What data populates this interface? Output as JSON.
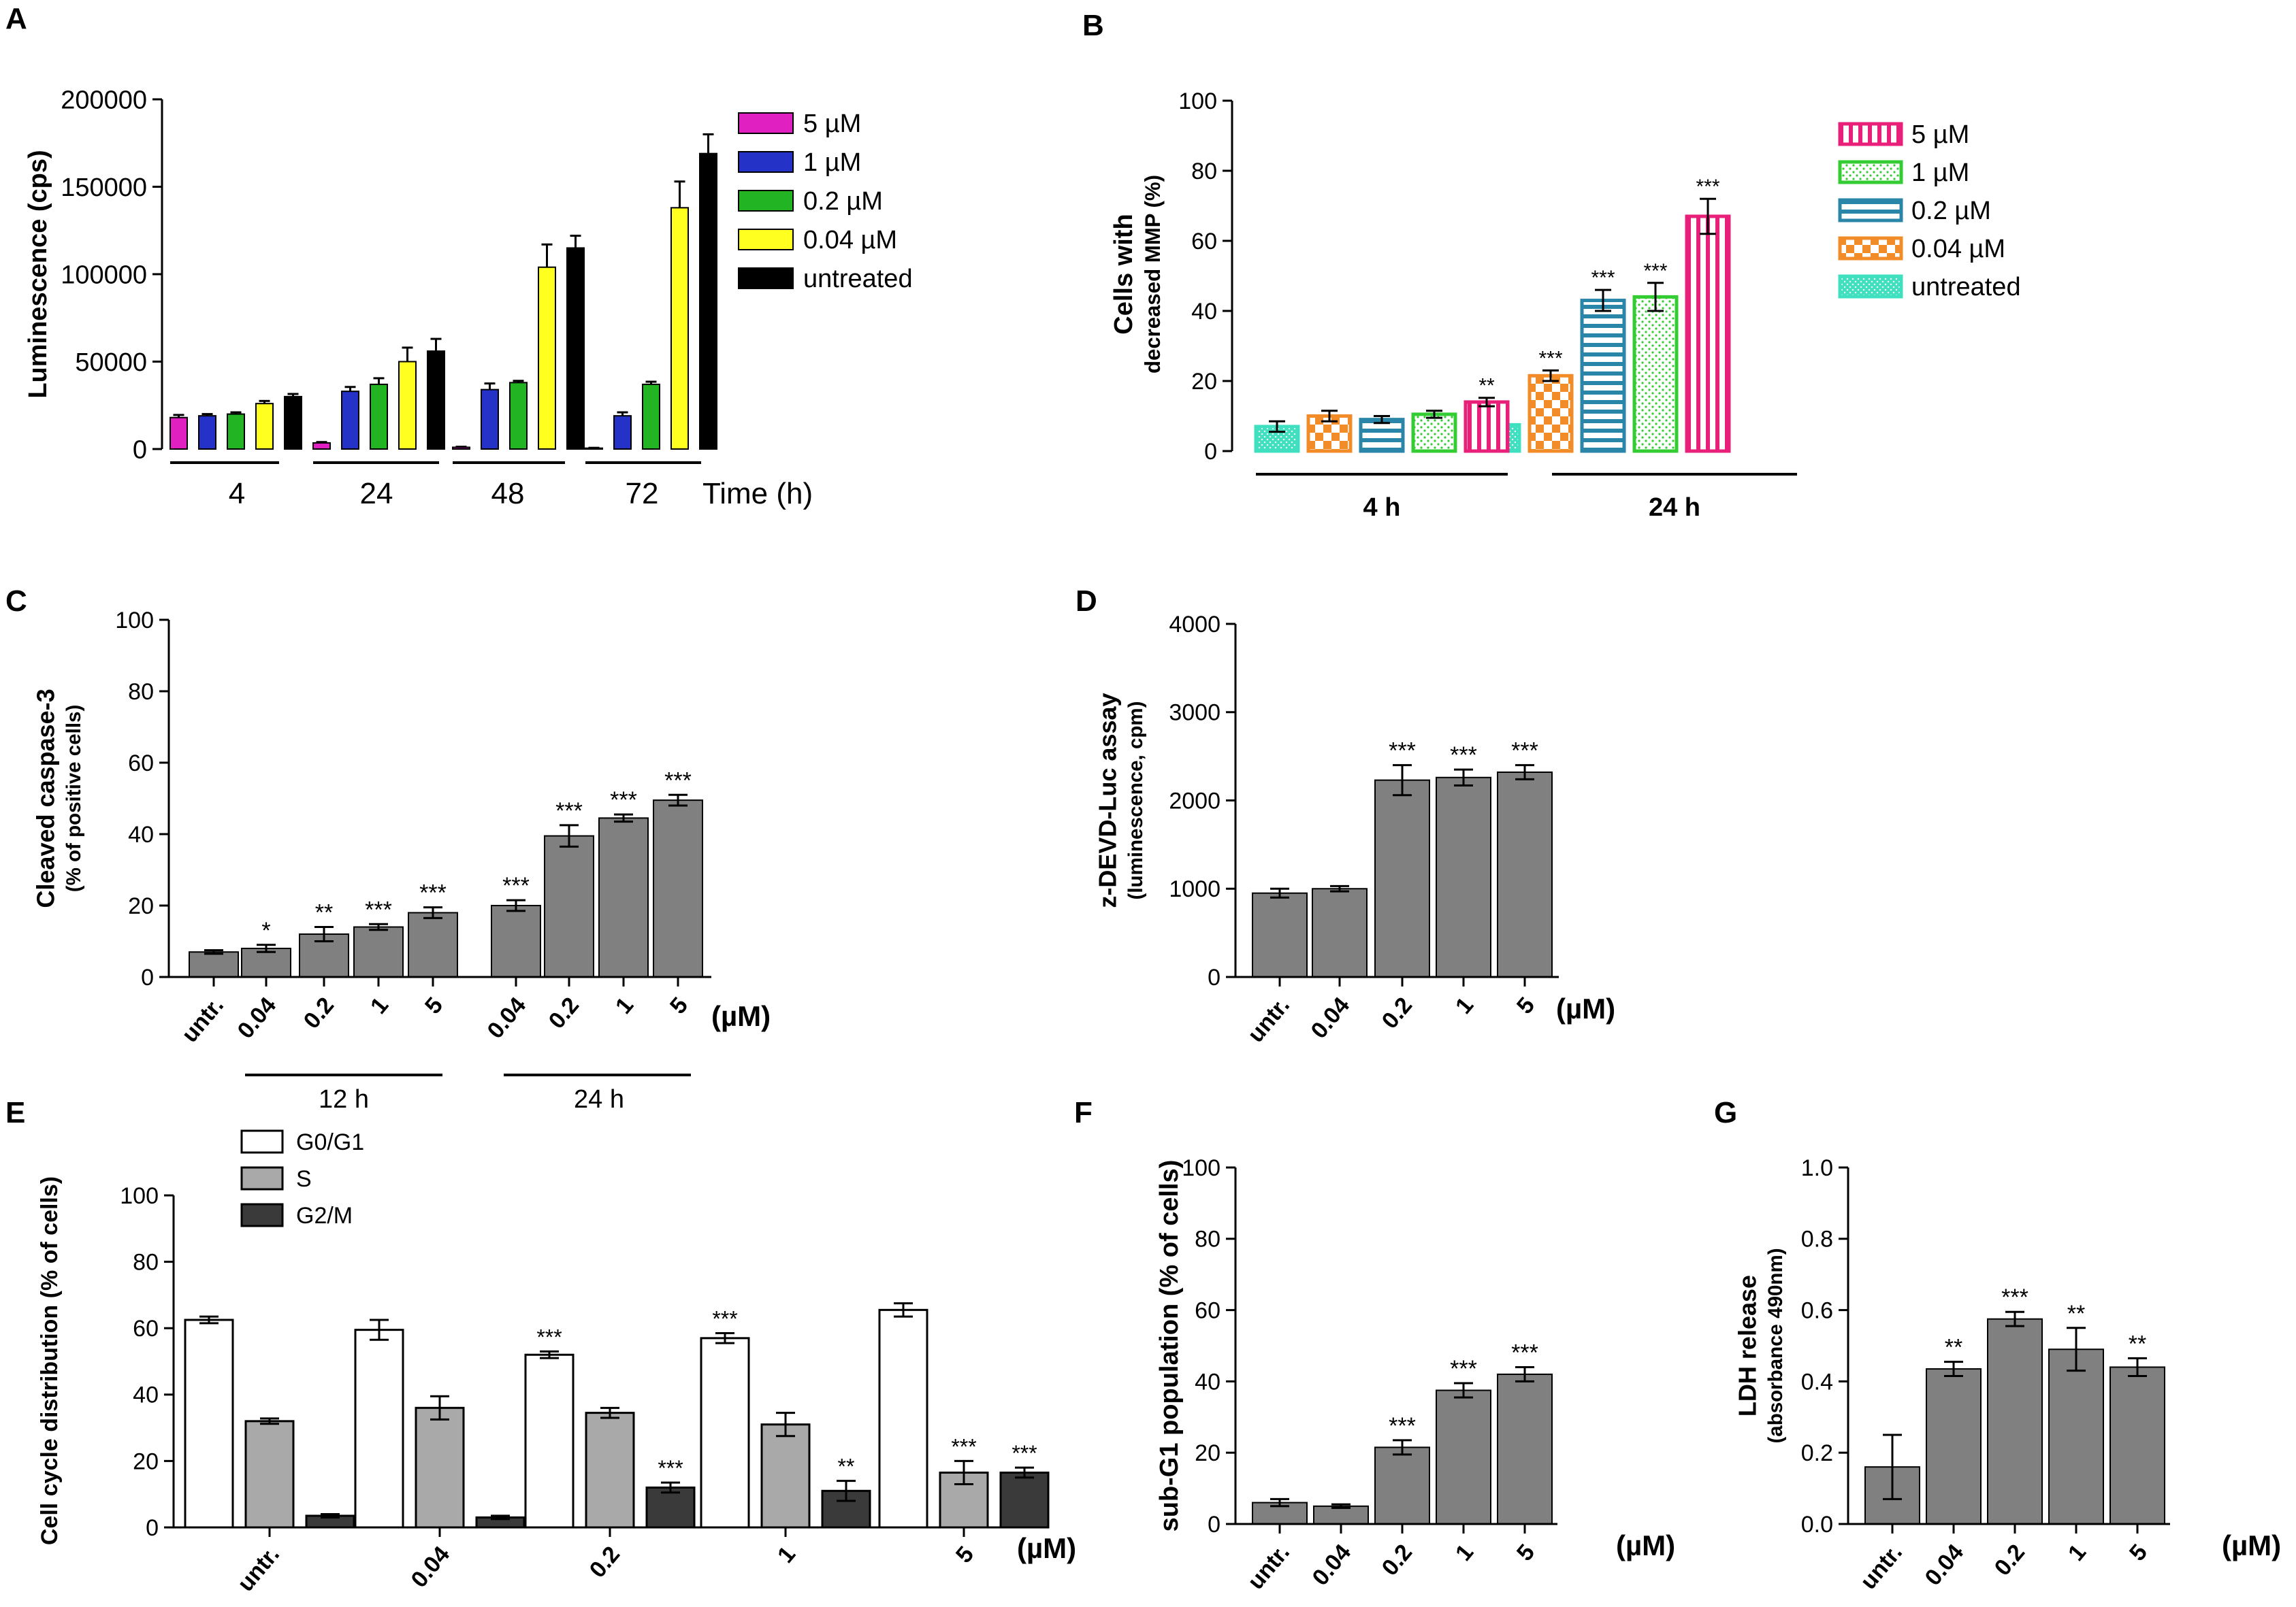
{
  "chart_data": [
    {
      "panel": "A",
      "type": "bar",
      "ylabel": "Luminescence (cps)",
      "xlabel": "Time (h)",
      "ylim": [
        0,
        200000
      ],
      "yticks": [
        0,
        50000,
        100000,
        150000,
        200000
      ],
      "ytick_labels": [
        "0",
        "50000",
        "100000",
        "150000",
        "200000"
      ],
      "categories": [
        "4",
        "24",
        "48",
        "72"
      ],
      "legend": "top-right",
      "series": [
        {
          "name": "5 µM",
          "color": "#e020c0",
          "values": [
            18000,
            3500,
            1000,
            500
          ],
          "errors": [
            1500,
            500,
            300,
            200
          ]
        },
        {
          "name": "1 µM",
          "color": "#2432c8",
          "values": [
            19000,
            33000,
            34000,
            19000
          ],
          "errors": [
            1000,
            2500,
            3500,
            2000
          ]
        },
        {
          "name": "0.2 µM",
          "color": "#22b422",
          "values": [
            20000,
            37000,
            38000,
            37000
          ],
          "errors": [
            1000,
            3500,
            1000,
            1500
          ]
        },
        {
          "name": "0.04 µM",
          "color": "#ffff20",
          "values": [
            26000,
            50000,
            104000,
            138000
          ],
          "errors": [
            1500,
            8000,
            13000,
            15000
          ]
        },
        {
          "name": "untreated",
          "color": "#000000",
          "values": [
            30000,
            56000,
            115000,
            169000
          ],
          "errors": [
            1500,
            7000,
            7000,
            11000
          ]
        }
      ]
    },
    {
      "panel": "B",
      "type": "bar",
      "ylabel_lines": [
        "Cells with",
        "decreased MMP (%)"
      ],
      "ylim": [
        0,
        100
      ],
      "yticks": [
        0,
        20,
        40,
        60,
        80,
        100
      ],
      "ytick_labels": [
        "0",
        "20",
        "40",
        "60",
        "80",
        "100"
      ],
      "groups": [
        "4 h",
        "24 h"
      ],
      "legend": "top-right",
      "series": [
        {
          "name": "untreated",
          "color": "#3fe0bf",
          "values": [
            7,
            7.5
          ],
          "errors": [
            1.5,
            0.8
          ],
          "sig": [
            "",
            ""
          ]
        },
        {
          "name": "0.04 µM",
          "color": "#f28c28",
          "values": [
            10,
            21.5
          ],
          "errors": [
            1.5,
            1.5
          ],
          "sig": [
            "",
            "***"
          ]
        },
        {
          "name": "0.2 µM",
          "color": "#2a86a8",
          "values": [
            9,
            43
          ],
          "errors": [
            1,
            3
          ],
          "sig": [
            "",
            "***"
          ]
        },
        {
          "name": "1 µM",
          "color": "#33cc33",
          "values": [
            10.5,
            44
          ],
          "errors": [
            1,
            4
          ],
          "sig": [
            "",
            "***"
          ]
        },
        {
          "name": "5 µM",
          "color": "#e8207a",
          "values": [
            14,
            67
          ],
          "errors": [
            1.2,
            5
          ],
          "sig": [
            "**",
            "***"
          ]
        }
      ]
    },
    {
      "panel": "C",
      "type": "bar",
      "ylabel_lines": [
        "Cleaved caspase-3",
        "(% of positive cells)"
      ],
      "ylim": [
        0,
        100
      ],
      "yticks": [
        0,
        20,
        40,
        60,
        80,
        100
      ],
      "ytick_labels": [
        "0",
        "20",
        "40",
        "60",
        "80",
        "100"
      ],
      "categories": [
        "untr.",
        "0.04",
        "0.2",
        "1",
        "5",
        "0.04",
        "0.2",
        "1",
        "5"
      ],
      "values": [
        7,
        8,
        12,
        14,
        18,
        20,
        39.5,
        44.5,
        49.5
      ],
      "errors": [
        0.5,
        1,
        2,
        0.8,
        1.5,
        1.5,
        3,
        1,
        1.5
      ],
      "sig": [
        "",
        "*",
        "**",
        "***",
        "***",
        "***",
        "***",
        "***",
        "***"
      ],
      "unit_label": "(µM)",
      "groups": [
        "12 h",
        "24 h"
      ],
      "bar_color": "#808080"
    },
    {
      "panel": "D",
      "type": "bar",
      "ylabel_lines": [
        "z-DEVD-Luc assay",
        "(luminescence, cpm)"
      ],
      "ylim": [
        0,
        4000
      ],
      "yticks": [
        0,
        1000,
        2000,
        3000,
        4000
      ],
      "ytick_labels": [
        "0",
        "1000",
        "2000",
        "3000",
        "4000"
      ],
      "categories": [
        "untr.",
        "0.04",
        "0.2",
        "1",
        "5"
      ],
      "values": [
        950,
        1000,
        2230,
        2260,
        2320
      ],
      "errors": [
        50,
        30,
        170,
        90,
        80
      ],
      "sig": [
        "",
        "",
        "***",
        "***",
        "***"
      ],
      "unit_label": "(µM)",
      "bar_color": "#808080"
    },
    {
      "panel": "E",
      "type": "bar",
      "ylabel": "Cell cycle distribution (% of cells)",
      "ylim": [
        0,
        100
      ],
      "yticks": [
        0,
        20,
        40,
        60,
        80,
        100
      ],
      "ytick_labels": [
        "0",
        "20",
        "40",
        "60",
        "80",
        "100"
      ],
      "categories": [
        "untr.",
        "0.04",
        "0.2",
        "1",
        "5"
      ],
      "unit_label": "(µM)",
      "legend": "top-left",
      "series": [
        {
          "name": "G0/G1",
          "color": "#ffffff",
          "values": [
            62.5,
            59.5,
            52,
            57,
            65.5
          ],
          "errors": [
            1,
            3,
            1,
            1.5,
            2
          ],
          "sig": [
            "",
            "",
            "***",
            "***",
            ""
          ]
        },
        {
          "name": "S",
          "color": "#a9a9a9",
          "values": [
            32,
            36,
            34.5,
            31,
            16.5
          ],
          "errors": [
            0.8,
            3.5,
            1.5,
            3.5,
            3.5
          ],
          "sig": [
            "",
            "",
            "",
            "",
            "***"
          ]
        },
        {
          "name": "G2/M",
          "color": "#3a3a3a",
          "values": [
            3.5,
            3,
            12,
            11,
            16.5
          ],
          "errors": [
            0.5,
            0.5,
            1.5,
            3,
            1.5
          ],
          "sig": [
            "",
            "",
            "***",
            "**",
            "***"
          ]
        }
      ]
    },
    {
      "panel": "F",
      "type": "bar",
      "ylabel": "sub-G1 population (% of cells)",
      "ylim": [
        0,
        100
      ],
      "yticks": [
        0,
        20,
        40,
        60,
        80,
        100
      ],
      "ytick_labels": [
        "0",
        "20",
        "40",
        "60",
        "80",
        "100"
      ],
      "categories": [
        "untr.",
        "0.04",
        "0.2",
        "1",
        "5"
      ],
      "values": [
        6,
        5,
        21.5,
        37.5,
        42
      ],
      "errors": [
        1,
        0.5,
        2,
        2,
        2
      ],
      "sig": [
        "",
        "",
        "***",
        "***",
        "***"
      ],
      "unit_label": "(µM)",
      "bar_color": "#808080"
    },
    {
      "panel": "G",
      "type": "bar",
      "ylabel_lines": [
        "LDH release",
        "(absorbance 490nm)"
      ],
      "ylim": [
        0,
        1.0
      ],
      "yticks": [
        0,
        0.2,
        0.4,
        0.6,
        0.8,
        1.0
      ],
      "ytick_labels": [
        "0.0",
        "0.2",
        "0.4",
        "0.6",
        "0.8",
        "1.0"
      ],
      "categories": [
        "untr.",
        "0.04",
        "0.2",
        "1",
        "5"
      ],
      "values": [
        0.16,
        0.435,
        0.575,
        0.49,
        0.44
      ],
      "errors": [
        0.09,
        0.02,
        0.02,
        0.06,
        0.025
      ],
      "sig": [
        "",
        "**",
        "***",
        "**",
        "**"
      ],
      "unit_label": "(µM)",
      "bar_color": "#808080"
    }
  ]
}
